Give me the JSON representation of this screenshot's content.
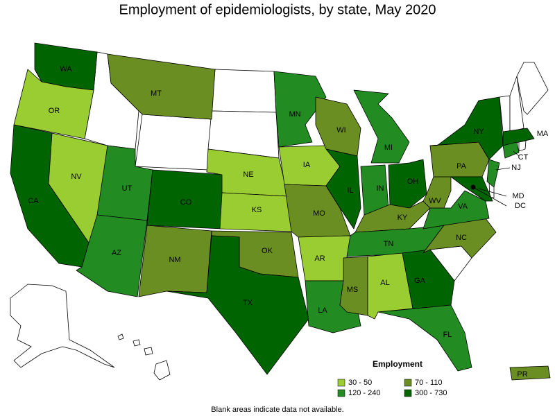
{
  "title": "Employment of epidemiologists, by state, May 2020",
  "legend": {
    "title": "Employment",
    "items": [
      {
        "label": "30 - 50",
        "color": "#9acd32"
      },
      {
        "label": "70 - 110",
        "color": "#6b8e23"
      },
      {
        "label": "120 - 240",
        "color": "#228b22"
      },
      {
        "label": "300 - 730",
        "color": "#006400"
      }
    ]
  },
  "states": [
    {
      "label": "WA",
      "bin": 3
    },
    {
      "label": "OR",
      "bin": 0
    },
    {
      "label": "CA",
      "bin": 3
    },
    {
      "label": "NV",
      "bin": 0
    },
    {
      "label": "MT",
      "bin": 1
    },
    {
      "label": "UT",
      "bin": 2
    },
    {
      "label": "AZ",
      "bin": 2
    },
    {
      "label": "CO",
      "bin": 3
    },
    {
      "label": "NM",
      "bin": 1
    },
    {
      "label": "NE",
      "bin": 0
    },
    {
      "label": "KS",
      "bin": 0
    },
    {
      "label": "OK",
      "bin": 1
    },
    {
      "label": "TX",
      "bin": 3
    },
    {
      "label": "MN",
      "bin": 2
    },
    {
      "label": "IA",
      "bin": 0
    },
    {
      "label": "MO",
      "bin": 1
    },
    {
      "label": "AR",
      "bin": 0
    },
    {
      "label": "LA",
      "bin": 2
    },
    {
      "label": "WI",
      "bin": 1
    },
    {
      "label": "IL",
      "bin": 3
    },
    {
      "label": "MI",
      "bin": 2
    },
    {
      "label": "IN",
      "bin": 2
    },
    {
      "label": "OH",
      "bin": 3
    },
    {
      "label": "KY",
      "bin": 1
    },
    {
      "label": "TN",
      "bin": 2
    },
    {
      "label": "MS",
      "bin": 1
    },
    {
      "label": "AL",
      "bin": 0
    },
    {
      "label": "GA",
      "bin": 3
    },
    {
      "label": "FL",
      "bin": 2
    },
    {
      "label": "NC",
      "bin": 1
    },
    {
      "label": "VA",
      "bin": 2
    },
    {
      "label": "WV",
      "bin": 1
    },
    {
      "label": "PA",
      "bin": 1
    },
    {
      "label": "NY",
      "bin": 3
    },
    {
      "label": "MA",
      "bin": 3
    },
    {
      "label": "CT",
      "bin": 2
    },
    {
      "label": "NJ",
      "bin": 2
    },
    {
      "label": "MD",
      "bin": 3
    },
    {
      "label": "DC",
      "bin": 3
    },
    {
      "label": "PR",
      "bin": 1
    }
  ],
  "note": "Blank areas indicate data not available."
}
